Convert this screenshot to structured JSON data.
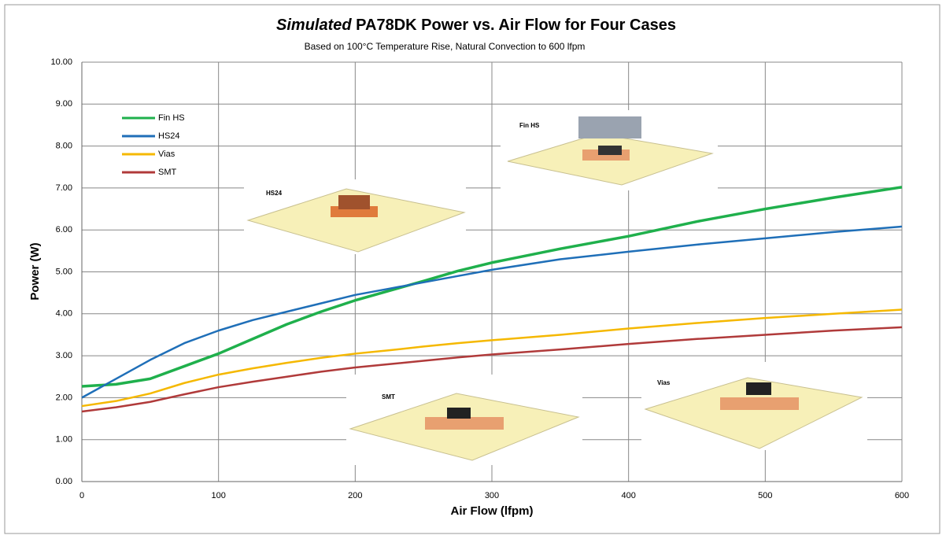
{
  "chart_data": {
    "type": "line",
    "title_prefix": "Simulated",
    "title": "PA78DK Power vs. Air Flow for Four Cases",
    "subtitle": "Based on 100°C Temperature Rise, Natural  Convection to 600 lfpm",
    "x_label": "Air Flow (lfpm)",
    "y_label": "Power (W)",
    "x": [
      0,
      25,
      50,
      75,
      100,
      125,
      150,
      175,
      200,
      225,
      250,
      275,
      300,
      350,
      400,
      450,
      500,
      550,
      600
    ],
    "series": [
      {
        "name": "Fin HS",
        "color": "#1fb04c",
        "values": [
          2.27,
          2.32,
          2.45,
          2.75,
          3.05,
          3.4,
          3.75,
          4.05,
          4.32,
          4.55,
          4.78,
          5.02,
          5.22,
          5.55,
          5.85,
          6.2,
          6.5,
          6.77,
          7.02
        ]
      },
      {
        "name": "HS24",
        "color": "#1f6fb8",
        "values": [
          2.0,
          2.45,
          2.9,
          3.3,
          3.6,
          3.85,
          4.05,
          4.25,
          4.45,
          4.6,
          4.75,
          4.9,
          5.05,
          5.3,
          5.48,
          5.65,
          5.8,
          5.95,
          6.08
        ]
      },
      {
        "name": "Vias",
        "color": "#f5b800",
        "values": [
          1.8,
          1.92,
          2.1,
          2.35,
          2.55,
          2.7,
          2.83,
          2.95,
          3.05,
          3.13,
          3.22,
          3.3,
          3.37,
          3.5,
          3.65,
          3.78,
          3.9,
          4.0,
          4.1
        ]
      },
      {
        "name": "SMT",
        "color": "#b03a3a",
        "values": [
          1.67,
          1.77,
          1.9,
          2.08,
          2.25,
          2.38,
          2.5,
          2.62,
          2.72,
          2.8,
          2.88,
          2.96,
          3.03,
          3.15,
          3.28,
          3.4,
          3.5,
          3.6,
          3.68
        ]
      }
    ],
    "xlim": [
      0,
      600
    ],
    "xticks": [
      0,
      100,
      200,
      300,
      400,
      500,
      600
    ],
    "ylim": [
      0,
      10
    ],
    "yticks": [
      {
        "value": 0,
        "label": "0.00"
      },
      {
        "value": 1,
        "label": "1.00"
      },
      {
        "value": 2,
        "label": "2.00"
      },
      {
        "value": 3,
        "label": "3.00"
      },
      {
        "value": 4,
        "label": "4.00"
      },
      {
        "value": 5,
        "label": "5.00"
      },
      {
        "value": 6,
        "label": "6.00"
      },
      {
        "value": 7,
        "label": "7.00"
      },
      {
        "value": 8,
        "label": "8.00"
      },
      {
        "value": 9,
        "label": "9.00"
      },
      {
        "value": 10,
        "label": "10.00"
      }
    ],
    "grid": true,
    "legend": "upper-left",
    "annotations": [
      "HS24",
      "Fin HS",
      "SMT",
      "Vias"
    ]
  }
}
